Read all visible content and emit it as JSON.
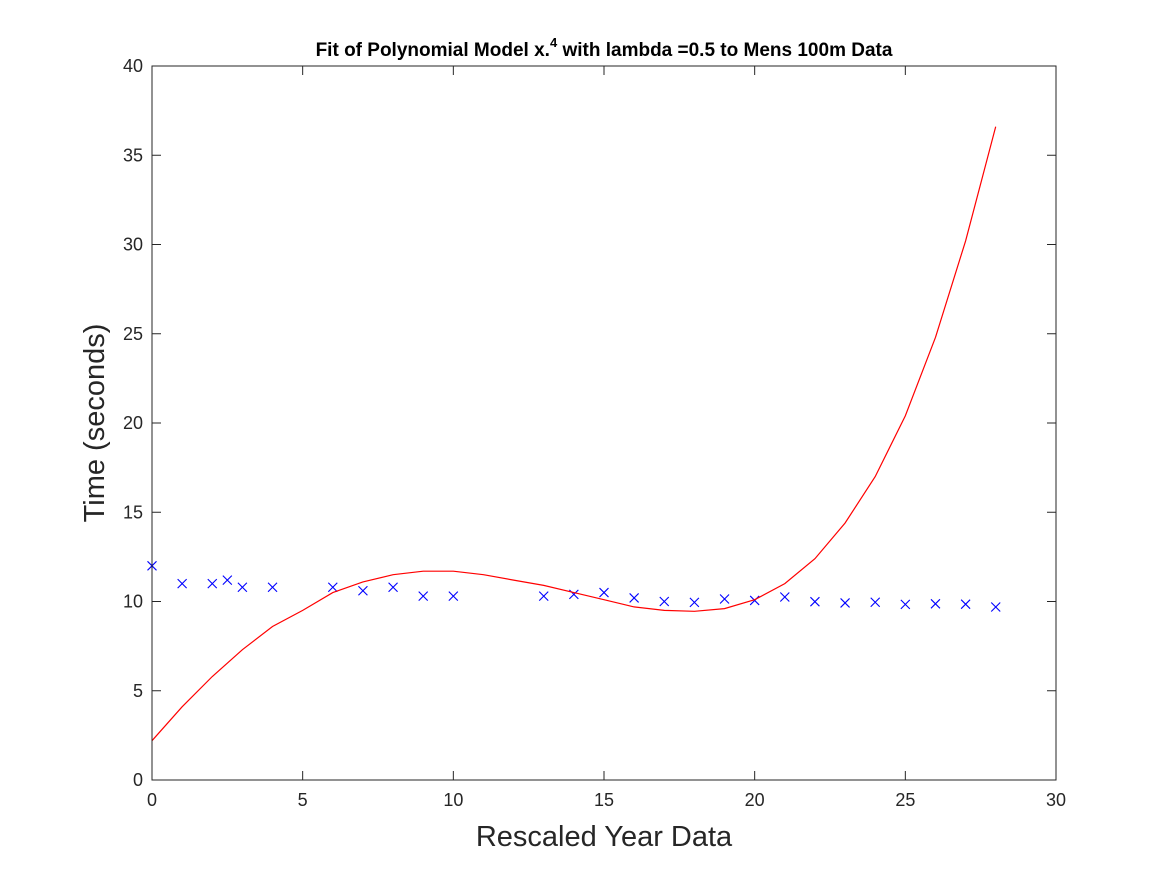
{
  "chart_data": {
    "type": "scatter",
    "title_parts": {
      "before_sup": "Fit of Polynomial Model x.",
      "sup": "4",
      "after_sup": " with lambda =0.5 to Mens 100m Data"
    },
    "xlabel": "Rescaled Year Data",
    "ylabel": "Time (seconds)",
    "xlim": [
      0,
      30
    ],
    "ylim": [
      0,
      40
    ],
    "xticks": [
      0,
      5,
      10,
      15,
      20,
      25,
      30
    ],
    "yticks": [
      0,
      5,
      10,
      15,
      20,
      25,
      30,
      35,
      40
    ],
    "grid": false,
    "series": [
      {
        "kind": "scatter",
        "marker": "x",
        "color": "#0000ff",
        "x": [
          0,
          1,
          2,
          2.5,
          3,
          4,
          6,
          7,
          8,
          9,
          10,
          13,
          14,
          15,
          16,
          17,
          18,
          19,
          20,
          21,
          22,
          23,
          24,
          25,
          26,
          27,
          28
        ],
        "y": [
          12.0,
          11.0,
          11.0,
          11.2,
          10.8,
          10.8,
          10.8,
          10.6,
          10.8,
          10.3,
          10.3,
          10.3,
          10.4,
          10.5,
          10.2,
          10.0,
          9.95,
          10.14,
          10.06,
          10.25,
          9.99,
          9.92,
          9.96,
          9.84,
          9.87,
          9.85,
          9.69
        ]
      },
      {
        "kind": "line",
        "color": "#ff0000",
        "x": [
          0,
          1,
          2,
          3,
          4,
          5,
          6,
          7,
          8,
          9,
          10,
          11,
          12,
          13,
          14,
          15,
          16,
          17,
          18,
          19,
          20,
          21,
          22,
          23,
          24,
          25,
          26,
          27,
          28
        ],
        "y": [
          2.2,
          4.1,
          5.8,
          7.3,
          8.6,
          9.5,
          10.5,
          11.1,
          11.5,
          11.7,
          11.7,
          11.5,
          11.2,
          10.9,
          10.5,
          10.1,
          9.7,
          9.5,
          9.45,
          9.6,
          10.1,
          11.0,
          12.4,
          14.4,
          17.0,
          20.4,
          24.8,
          30.2,
          36.6
        ]
      }
    ]
  }
}
